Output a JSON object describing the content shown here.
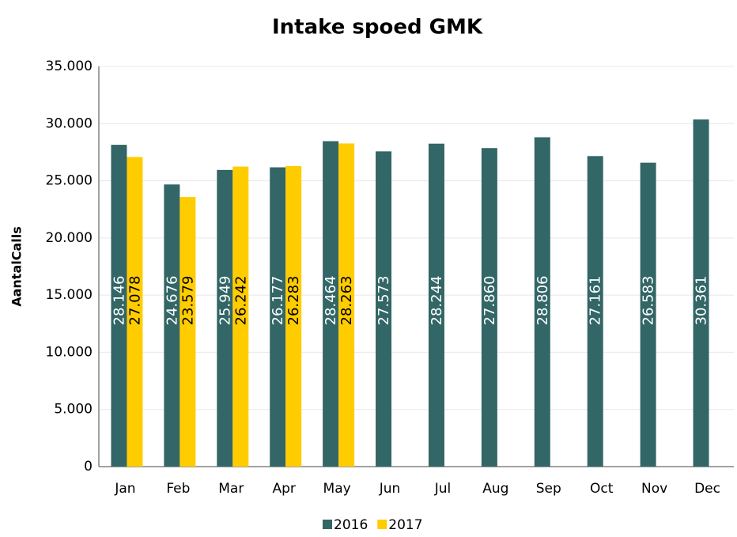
{
  "chart_data": {
    "type": "bar",
    "title": "Intake spoed GMK",
    "y_label": "AantalCalls",
    "categories": [
      "Jan",
      "Feb",
      "Mar",
      "Apr",
      "May",
      "Jun",
      "Jul",
      "Aug",
      "Sep",
      "Oct",
      "Nov",
      "Dec"
    ],
    "series": [
      {
        "name": "2016",
        "color": "#336666",
        "values": [
          28146,
          24676,
          25949,
          26177,
          28464,
          27573,
          28244,
          27860,
          28806,
          27161,
          26583,
          30361
        ],
        "value_labels": [
          "28.146",
          "24.676",
          "25.949",
          "26.177",
          "28.464",
          "27.573",
          "28.244",
          "27.860",
          "28.806",
          "27.161",
          "26.583",
          "30.361"
        ]
      },
      {
        "name": "2017",
        "color": "#ffcc00",
        "values": [
          27078,
          23579,
          26242,
          26283,
          28263,
          null,
          null,
          null,
          null,
          null,
          null,
          null
        ],
        "value_labels": [
          "27.078",
          "23.579",
          "26.242",
          "26.283",
          "28.263",
          null,
          null,
          null,
          null,
          null,
          null,
          null
        ]
      }
    ],
    "ylim": [
      0,
      35000
    ],
    "yticks": [
      0,
      {
        "value": 5000,
        "label": "5.000"
      },
      {
        "value": 10000,
        "label": "10.000"
      },
      {
        "value": 15000,
        "label": "15.000"
      },
      {
        "value": 20000,
        "label": "20.000"
      },
      {
        "value": 25000,
        "label": "25.000"
      },
      {
        "value": 30000,
        "label": "30.000"
      },
      {
        "value": 35000,
        "label": "35.000"
      }
    ],
    "grid": true,
    "legend": "bottom"
  }
}
